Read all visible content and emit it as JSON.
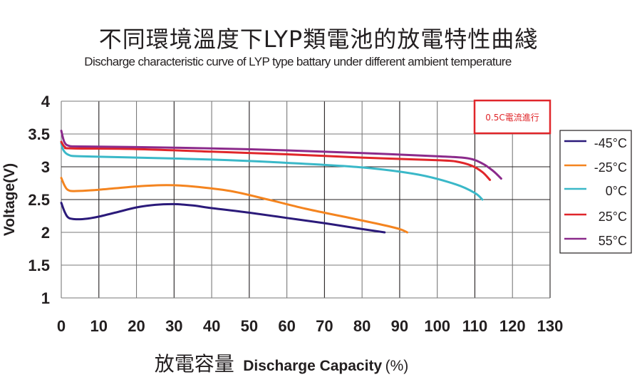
{
  "chart_data": {
    "type": "line",
    "title": "不同環境溫度下LYP類電池的放電特性曲綫",
    "subtitle": "Discharge characteristic curve of LYP type battary under different ambient temperature",
    "xlabel_cn": "放電容量",
    "xlabel_en": "Discharge Capacity",
    "xlabel_unit": "(%)",
    "ylabel": "Voltage(V)",
    "xlim": [
      0,
      130
    ],
    "ylim": [
      1,
      4
    ],
    "xticks": [
      "0",
      "10",
      "20",
      "30",
      "40",
      "50",
      "60",
      "70",
      "80",
      "90",
      "100",
      "110",
      "120",
      "130"
    ],
    "yticks": [
      "1",
      "1.5",
      "2",
      "2.5",
      "3",
      "3.5",
      "4"
    ],
    "grid": true,
    "annotation": "0.5C電流進行",
    "legend_position": "right",
    "series": [
      {
        "name": "-45°C",
        "label_num": "-45",
        "color": "#2b1a7a",
        "points": [
          [
            0,
            2.45
          ],
          [
            1,
            2.3
          ],
          [
            2,
            2.22
          ],
          [
            4,
            2.2
          ],
          [
            7,
            2.21
          ],
          [
            10,
            2.24
          ],
          [
            15,
            2.31
          ],
          [
            20,
            2.38
          ],
          [
            25,
            2.42
          ],
          [
            30,
            2.43
          ],
          [
            35,
            2.41
          ],
          [
            40,
            2.37
          ],
          [
            50,
            2.3
          ],
          [
            60,
            2.22
          ],
          [
            70,
            2.14
          ],
          [
            80,
            2.05
          ],
          [
            86,
            2.0
          ]
        ]
      },
      {
        "name": "-25°C",
        "label_num": "-25",
        "color": "#f4841f",
        "points": [
          [
            0,
            2.83
          ],
          [
            1,
            2.7
          ],
          [
            2,
            2.64
          ],
          [
            4,
            2.63
          ],
          [
            10,
            2.65
          ],
          [
            20,
            2.7
          ],
          [
            28,
            2.72
          ],
          [
            35,
            2.7
          ],
          [
            45,
            2.63
          ],
          [
            55,
            2.5
          ],
          [
            65,
            2.36
          ],
          [
            75,
            2.24
          ],
          [
            85,
            2.12
          ],
          [
            90,
            2.05
          ],
          [
            92,
            2.0
          ]
        ]
      },
      {
        "name": "0°C",
        "label_num": "0",
        "color": "#3ab8c8",
        "points": [
          [
            0,
            3.36
          ],
          [
            0.6,
            3.25
          ],
          [
            2,
            3.18
          ],
          [
            5,
            3.16
          ],
          [
            20,
            3.14
          ],
          [
            40,
            3.11
          ],
          [
            60,
            3.06
          ],
          [
            80,
            2.99
          ],
          [
            95,
            2.88
          ],
          [
            105,
            2.73
          ],
          [
            110,
            2.6
          ],
          [
            112,
            2.5
          ]
        ]
      },
      {
        "name": "25°C",
        "label_num": "25",
        "color": "#e0262a",
        "points": [
          [
            0,
            3.38
          ],
          [
            1,
            3.3
          ],
          [
            3,
            3.28
          ],
          [
            20,
            3.27
          ],
          [
            40,
            3.23
          ],
          [
            60,
            3.19
          ],
          [
            80,
            3.14
          ],
          [
            100,
            3.1
          ],
          [
            105,
            3.08
          ],
          [
            109,
            3.02
          ],
          [
            112,
            2.92
          ],
          [
            114,
            2.8
          ]
        ]
      },
      {
        "name": "55°C",
        "label_num": "55",
        "color": "#8b2a8b",
        "points": [
          [
            0,
            3.55
          ],
          [
            0.8,
            3.38
          ],
          [
            2,
            3.32
          ],
          [
            5,
            3.31
          ],
          [
            20,
            3.3
          ],
          [
            40,
            3.28
          ],
          [
            60,
            3.25
          ],
          [
            80,
            3.21
          ],
          [
            100,
            3.16
          ],
          [
            108,
            3.13
          ],
          [
            112,
            3.05
          ],
          [
            115,
            2.93
          ],
          [
            117,
            2.82
          ]
        ]
      }
    ]
  }
}
